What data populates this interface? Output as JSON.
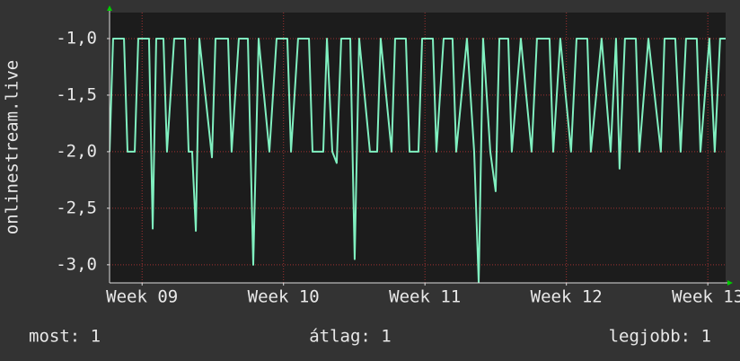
{
  "chart_data": {
    "type": "line",
    "ylabel": "onlinestream.live",
    "x": [
      8.77,
      8.795,
      8.872,
      8.897,
      8.948,
      8.973,
      9.049,
      9.075,
      9.1,
      9.151,
      9.176,
      9.227,
      9.303,
      9.329,
      9.354,
      9.38,
      9.405,
      9.494,
      9.519,
      9.608,
      9.633,
      9.684,
      9.748,
      9.786,
      9.824,
      9.9,
      9.951,
      10.027,
      10.053,
      10.103,
      10.18,
      10.205,
      10.281,
      10.307,
      10.345,
      10.376,
      10.408,
      10.472,
      10.503,
      10.535,
      10.611,
      10.662,
      10.687,
      10.764,
      10.789,
      10.865,
      10.891,
      10.954,
      10.98,
      11.056,
      11.081,
      11.132,
      11.195,
      11.221,
      11.297,
      11.348,
      11.38,
      11.411,
      11.462,
      11.5,
      11.526,
      11.589,
      11.614,
      11.678,
      11.754,
      11.792,
      11.881,
      11.907,
      11.957,
      12.033,
      12.072,
      12.148,
      12.173,
      12.249,
      12.313,
      12.351,
      12.376,
      12.414,
      12.491,
      12.516,
      12.58,
      12.668,
      12.694,
      12.77,
      12.808,
      12.846,
      12.922,
      12.948,
      13.011,
      13.049,
      13.087,
      13.126
    ],
    "series": [
      {
        "color": "#80f0c0",
        "values": [
          -2.0,
          -1.0,
          -1.0,
          -2.0,
          -2.0,
          -1.0,
          -1.0,
          -2.68,
          -1.0,
          -1.0,
          -2.0,
          -1.0,
          -1.0,
          -2.0,
          -2.0,
          -2.7,
          -1.0,
          -2.05,
          -1.0,
          -1.0,
          -2.0,
          -1.0,
          -1.0,
          -3.0,
          -1.0,
          -2.0,
          -1.0,
          -1.0,
          -2.0,
          -1.0,
          -1.0,
          -2.0,
          -2.0,
          -1.0,
          -2.0,
          -2.1,
          -1.0,
          -1.0,
          -2.95,
          -1.0,
          -2.0,
          -2.0,
          -1.0,
          -2.0,
          -1.0,
          -1.0,
          -2.0,
          -2.0,
          -1.0,
          -1.0,
          -2.0,
          -1.0,
          -1.0,
          -2.0,
          -1.0,
          -2.0,
          -3.16,
          -1.0,
          -2.0,
          -2.35,
          -1.0,
          -1.0,
          -2.0,
          -1.0,
          -2.0,
          -1.0,
          -1.0,
          -2.0,
          -1.0,
          -2.0,
          -1.0,
          -1.0,
          -2.0,
          -1.0,
          -2.0,
          -1.0,
          -2.15,
          -1.0,
          -1.0,
          -2.0,
          -1.0,
          -2.0,
          -1.0,
          -1.0,
          -2.0,
          -1.0,
          -1.0,
          -2.0,
          -1.0,
          -2.0,
          -1.0,
          -1.0
        ]
      }
    ],
    "xlim": [
      8.77,
      13.126
    ],
    "xticks": [
      {
        "value": 9,
        "label": "Week 09"
      },
      {
        "value": 10,
        "label": "Week 10"
      },
      {
        "value": 11,
        "label": "Week 11"
      },
      {
        "value": 12,
        "label": "Week 12"
      },
      {
        "value": 13,
        "label": "Week 13"
      }
    ],
    "ylim": [
      -3.16,
      -0.77
    ],
    "yticks": [
      {
        "value": -1.0,
        "label": "-1,0"
      },
      {
        "value": -1.5,
        "label": "-1,5"
      },
      {
        "value": -2.0,
        "label": "-2,0"
      },
      {
        "value": -2.5,
        "label": "-2,5"
      },
      {
        "value": -3.0,
        "label": "-3,0"
      }
    ],
    "grid": true,
    "footer": [
      "most: 1",
      "átlag: 1",
      "legjobb: 1"
    ]
  }
}
